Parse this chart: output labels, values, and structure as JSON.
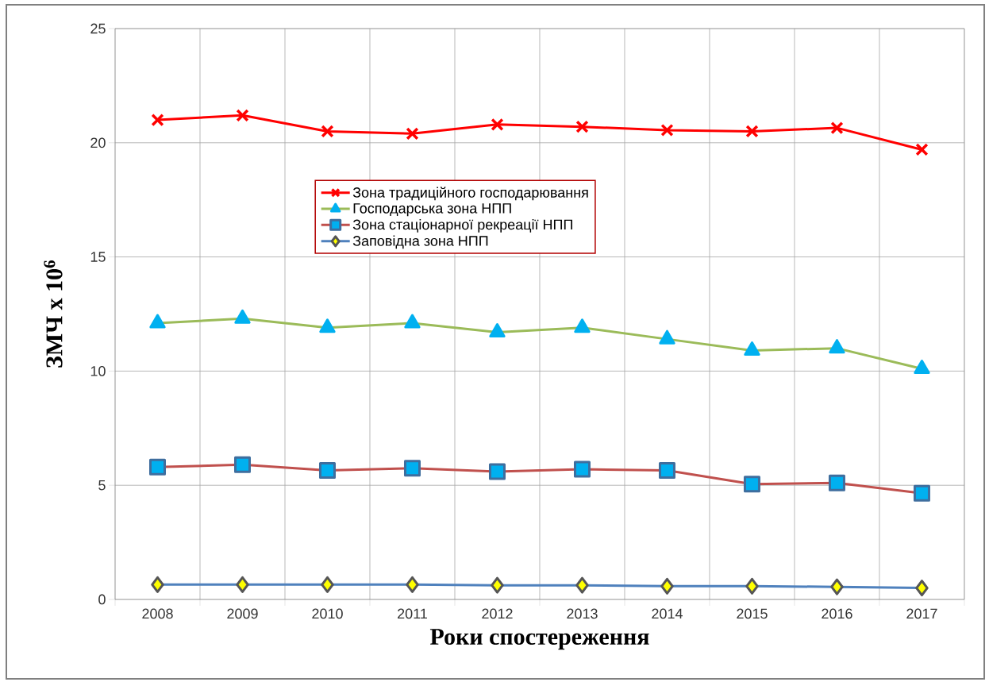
{
  "chart_data": {
    "type": "line",
    "xlabel": "Роки спостереження",
    "ylabel": "ЗМЧ x 10$^{6}$",
    "categories": [
      "2008",
      "2009",
      "2010",
      "2011",
      "2012",
      "2013",
      "2014",
      "2015",
      "2016",
      "2017"
    ],
    "ylim": [
      0,
      25
    ],
    "yticks": [
      0,
      5,
      10,
      15,
      20,
      25
    ],
    "grid": true,
    "legend": "top",
    "series": [
      {
        "name": "Зона традиційного господарювання",
        "color": "#ff0000",
        "marker": "cross",
        "values": [
          21.0,
          21.2,
          20.5,
          20.4,
          20.8,
          20.7,
          20.55,
          20.5,
          20.65,
          19.7
        ]
      },
      {
        "name": "Господарська зона НПП",
        "color": "#9bbb59",
        "marker": "triangle",
        "values": [
          12.1,
          12.3,
          11.9,
          12.1,
          11.7,
          11.9,
          11.4,
          10.9,
          11.0,
          10.1
        ]
      },
      {
        "name": "Зона стаціонарної рекреації НПП",
        "color": "#c0504d",
        "marker": "square",
        "values": [
          5.8,
          5.9,
          5.65,
          5.75,
          5.6,
          5.7,
          5.65,
          5.05,
          5.1,
          4.65
        ]
      },
      {
        "name": "Заповідна зона НПП",
        "color": "#4f81bd",
        "marker": "diamond",
        "values": [
          0.65,
          0.65,
          0.65,
          0.65,
          0.62,
          0.62,
          0.58,
          0.58,
          0.55,
          0.5
        ]
      }
    ]
  }
}
